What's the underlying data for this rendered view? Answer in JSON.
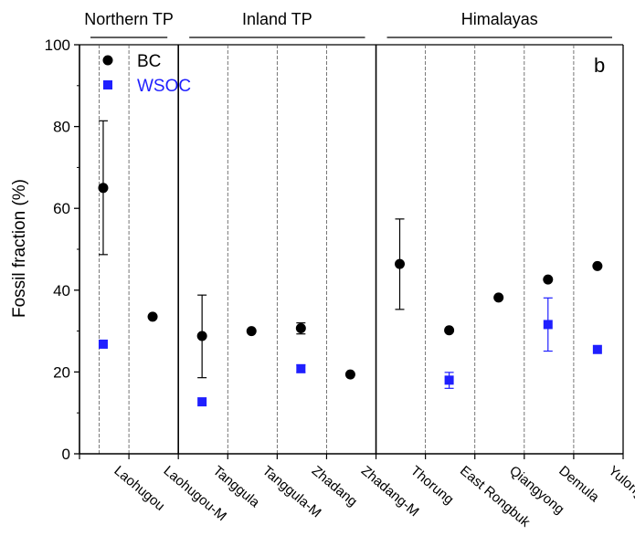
{
  "chart_data": {
    "type": "scatter",
    "panel_label": "b",
    "ylabel": "Fossil fraction (%)",
    "ylim": [
      0,
      100
    ],
    "yticks": [
      0,
      20,
      40,
      60,
      80,
      100
    ],
    "categories": [
      "Laohugou",
      "Laohugou-M",
      "Tanggula",
      "Tanggula-M",
      "Zhadang",
      "Zhadang-M",
      "Thorung",
      "East Rongbuk",
      "Qiangyong",
      "Demula",
      "Yulong"
    ],
    "regions": [
      {
        "label": "Northern TP",
        "from": 0,
        "to": 1
      },
      {
        "label": "Inland TP",
        "from": 2,
        "to": 5
      },
      {
        "label": "Himalayas",
        "from": 6,
        "to": 10
      }
    ],
    "series": [
      {
        "name": "BC",
        "color": "#000000",
        "marker": "circle",
        "values": [
          65.0,
          33.5,
          28.8,
          30.0,
          30.7,
          19.4,
          46.4,
          30.2,
          38.2,
          42.6,
          45.9
        ],
        "err_low": [
          48.7,
          null,
          18.6,
          null,
          29.3,
          null,
          35.3,
          null,
          null,
          null,
          null
        ],
        "err_high": [
          81.4,
          null,
          38.8,
          null,
          32.0,
          null,
          57.4,
          null,
          null,
          null,
          null
        ]
      },
      {
        "name": "WSOC",
        "color": "#1f1fff",
        "marker": "square",
        "values": [
          26.8,
          null,
          12.7,
          null,
          20.8,
          null,
          null,
          18.0,
          null,
          31.6,
          25.5
        ],
        "err_low": [
          null,
          null,
          null,
          null,
          19.9,
          null,
          null,
          16.0,
          null,
          25.1,
          null
        ],
        "err_high": [
          null,
          null,
          null,
          null,
          21.7,
          null,
          null,
          19.9,
          null,
          38.1,
          null
        ]
      }
    ]
  }
}
